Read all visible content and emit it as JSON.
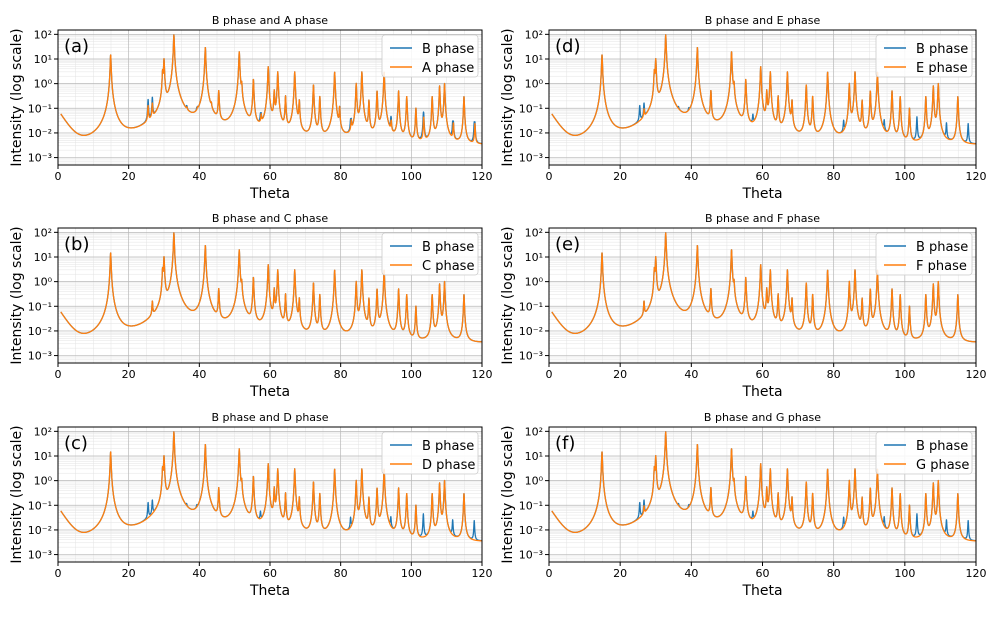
{
  "colors": {
    "b_phase": "#1f77b4",
    "other_phase": "#ff7f0e"
  },
  "chart_data": [
    {
      "type": "line",
      "panel_label": "(a)",
      "title": "B phase and A phase",
      "xlabel": "Theta",
      "ylabel": "Intensity (log scale)",
      "xlim": [
        0,
        120
      ],
      "ylim": [
        0.0005,
        150
      ],
      "yscale": "log",
      "xticks": [
        "0",
        "20",
        "40",
        "60",
        "80",
        "100",
        "120"
      ],
      "yticks": [
        "10⁻³",
        "10⁻²",
        "10⁻¹",
        "10⁰",
        "10¹",
        "10²"
      ],
      "grid": true,
      "legend_position": "upper-right",
      "peaks": [
        [
          14.9,
          15
        ],
        [
          25.5,
          0.1
        ],
        [
          26.7,
          0.12
        ],
        [
          29.6,
          3
        ],
        [
          30.0,
          10
        ],
        [
          32.8,
          95
        ],
        [
          36.5,
          0.02
        ],
        [
          39.5,
          0.02
        ],
        [
          41.7,
          30
        ],
        [
          43.4,
          0.05
        ],
        [
          45.5,
          0.5
        ],
        [
          51.3,
          20
        ],
        [
          52.0,
          0.8
        ],
        [
          55.3,
          1.5
        ],
        [
          57.5,
          0.03
        ],
        [
          59.5,
          5
        ],
        [
          61.2,
          0.5
        ],
        [
          62.2,
          3
        ],
        [
          64.4,
          0.3
        ],
        [
          67.0,
          3
        ],
        [
          68.3,
          0.2
        ],
        [
          72.3,
          0.9
        ],
        [
          74.1,
          0.3
        ],
        [
          78.3,
          3
        ],
        [
          79.7,
          0.1
        ],
        [
          83.0,
          0.02
        ],
        [
          84.4,
          1
        ],
        [
          86.0,
          3
        ],
        [
          88.0,
          0.2
        ],
        [
          90.3,
          0.5
        ],
        [
          92.3,
          3
        ],
        [
          94.3,
          0.02
        ],
        [
          96.4,
          0.5
        ],
        [
          98.7,
          0.3
        ],
        [
          101.3,
          0.1
        ],
        [
          103.5,
          0.04
        ],
        [
          105.9,
          0.3
        ],
        [
          108.0,
          0.8
        ],
        [
          109.4,
          1
        ],
        [
          111.9,
          0.02
        ],
        [
          114.9,
          0.3
        ],
        [
          118.0,
          0.02
        ]
      ],
      "series": [
        {
          "name": "B phase",
          "extra_peaks": [
            [
              25.5,
              0.1
            ],
            [
              26.7,
              0.12
            ],
            [
              36.4,
              0.02
            ],
            [
              39.3,
              0.02
            ],
            [
              57.3,
              0.03
            ],
            [
              74.3,
              0.006
            ],
            [
              82.8,
              0.02
            ],
            [
              94.2,
              0.02
            ],
            [
              103.4,
              0.04
            ],
            [
              111.7,
              0.02
            ],
            [
              117.8,
              0.02
            ]
          ]
        },
        {
          "name": "A phase",
          "extra_peaks": []
        }
      ]
    },
    {
      "type": "line",
      "panel_label": "(b)",
      "title": "B phase and C phase",
      "xlabel": "Theta",
      "ylabel": "Intensity (log scale)",
      "xlim": [
        0,
        120
      ],
      "ylim": [
        0.0005,
        150
      ],
      "yscale": "log",
      "xticks": [
        "0",
        "20",
        "40",
        "60",
        "80",
        "100",
        "120"
      ],
      "yticks": [
        "10⁻³",
        "10⁻²",
        "10⁻¹",
        "10⁰",
        "10¹",
        "10²"
      ],
      "grid": true,
      "legend_position": "upper-right",
      "peaks": [
        [
          14.9,
          15
        ],
        [
          26.7,
          0.12
        ],
        [
          29.6,
          3
        ],
        [
          30.0,
          10
        ],
        [
          32.8,
          95
        ],
        [
          41.7,
          30
        ],
        [
          45.5,
          0.5
        ],
        [
          51.3,
          20
        ],
        [
          52.0,
          0.8
        ],
        [
          55.3,
          1.5
        ],
        [
          59.5,
          5
        ],
        [
          61.2,
          0.5
        ],
        [
          62.2,
          3
        ],
        [
          64.4,
          0.3
        ],
        [
          67.0,
          3
        ],
        [
          68.3,
          0.2
        ],
        [
          72.3,
          0.9
        ],
        [
          74.1,
          0.3
        ],
        [
          78.3,
          3
        ],
        [
          84.4,
          1
        ],
        [
          86.0,
          3
        ],
        [
          88.0,
          0.2
        ],
        [
          90.3,
          0.5
        ],
        [
          92.3,
          3
        ],
        [
          96.4,
          0.5
        ],
        [
          98.7,
          0.3
        ],
        [
          101.3,
          0.1
        ],
        [
          105.9,
          0.3
        ],
        [
          108.0,
          0.8
        ],
        [
          109.4,
          1
        ],
        [
          114.9,
          0.3
        ]
      ],
      "series": [
        {
          "name": "B phase",
          "extra_peaks": []
        },
        {
          "name": "C phase",
          "extra_peaks": []
        }
      ]
    },
    {
      "type": "line",
      "panel_label": "(c)",
      "title": "B phase and D phase",
      "xlabel": "Theta",
      "ylabel": "Intensity (log scale)",
      "xlim": [
        0,
        120
      ],
      "ylim": [
        0.0005,
        150
      ],
      "yscale": "log",
      "xticks": [
        "0",
        "20",
        "40",
        "60",
        "80",
        "100",
        "120"
      ],
      "yticks": [
        "10⁻³",
        "10⁻²",
        "10⁻¹",
        "10⁰",
        "10¹",
        "10²"
      ],
      "grid": true,
      "legend_position": "upper-right",
      "peaks": [
        [
          14.9,
          15
        ],
        [
          29.6,
          3
        ],
        [
          30.0,
          10
        ],
        [
          32.8,
          95
        ],
        [
          41.7,
          30
        ],
        [
          45.5,
          0.5
        ],
        [
          51.3,
          20
        ],
        [
          52.0,
          0.8
        ],
        [
          55.3,
          1.5
        ],
        [
          59.5,
          5
        ],
        [
          61.2,
          0.5
        ],
        [
          62.2,
          3
        ],
        [
          64.4,
          0.3
        ],
        [
          67.0,
          3
        ],
        [
          68.3,
          0.2
        ],
        [
          72.3,
          0.9
        ],
        [
          74.1,
          0.3
        ],
        [
          78.3,
          3
        ],
        [
          84.4,
          1
        ],
        [
          86.0,
          3
        ],
        [
          88.0,
          0.2
        ],
        [
          90.3,
          0.5
        ],
        [
          92.3,
          3
        ],
        [
          96.4,
          0.5
        ],
        [
          98.7,
          0.3
        ],
        [
          101.3,
          0.1
        ],
        [
          105.9,
          0.3
        ],
        [
          108.0,
          0.8
        ],
        [
          109.4,
          1
        ],
        [
          114.9,
          0.3
        ]
      ],
      "series": [
        {
          "name": "B phase",
          "extra_peaks": [
            [
              25.5,
              0.1
            ],
            [
              26.7,
              0.12
            ],
            [
              36.4,
              0.02
            ],
            [
              39.3,
              0.02
            ],
            [
              57.3,
              0.03
            ],
            [
              74.3,
              0.006
            ],
            [
              82.8,
              0.02
            ],
            [
              94.2,
              0.02
            ],
            [
              103.4,
              0.04
            ],
            [
              111.7,
              0.02
            ],
            [
              117.8,
              0.02
            ]
          ]
        },
        {
          "name": "D phase",
          "extra_peaks": []
        }
      ]
    },
    {
      "type": "line",
      "panel_label": "(d)",
      "title": "B phase and E phase",
      "xlabel": "Theta",
      "ylabel": "Intensity (log scale)",
      "xlim": [
        0,
        120
      ],
      "ylim": [
        0.0005,
        150
      ],
      "yscale": "log",
      "xticks": [
        "0",
        "20",
        "40",
        "60",
        "80",
        "100",
        "120"
      ],
      "yticks": [
        "10⁻³",
        "10⁻²",
        "10⁻¹",
        "10⁰",
        "10¹",
        "10²"
      ],
      "grid": true,
      "legend_position": "upper-right",
      "peaks": [
        [
          14.9,
          15
        ],
        [
          29.6,
          3
        ],
        [
          30.0,
          10
        ],
        [
          32.8,
          95
        ],
        [
          41.7,
          30
        ],
        [
          45.5,
          0.5
        ],
        [
          51.3,
          20
        ],
        [
          52.0,
          0.8
        ],
        [
          55.3,
          1.5
        ],
        [
          59.5,
          5
        ],
        [
          61.2,
          0.5
        ],
        [
          62.2,
          3
        ],
        [
          64.4,
          0.3
        ],
        [
          67.0,
          3
        ],
        [
          68.3,
          0.2
        ],
        [
          72.3,
          0.9
        ],
        [
          74.1,
          0.3
        ],
        [
          78.3,
          3
        ],
        [
          84.4,
          1
        ],
        [
          86.0,
          3
        ],
        [
          88.0,
          0.2
        ],
        [
          90.3,
          0.5
        ],
        [
          92.3,
          3
        ],
        [
          96.4,
          0.5
        ],
        [
          98.7,
          0.3
        ],
        [
          101.3,
          0.1
        ],
        [
          105.9,
          0.3
        ],
        [
          108.0,
          0.8
        ],
        [
          109.4,
          1
        ],
        [
          114.9,
          0.3
        ]
      ],
      "series": [
        {
          "name": "B phase",
          "extra_peaks": [
            [
              25.5,
              0.1
            ],
            [
              26.7,
              0.12
            ],
            [
              36.4,
              0.02
            ],
            [
              39.3,
              0.02
            ],
            [
              57.3,
              0.03
            ],
            [
              74.3,
              0.006
            ],
            [
              82.8,
              0.02
            ],
            [
              94.2,
              0.02
            ],
            [
              103.4,
              0.04
            ],
            [
              111.7,
              0.02
            ],
            [
              117.8,
              0.02
            ]
          ]
        },
        {
          "name": "E phase",
          "extra_peaks": [
            [
              26.7,
              0.05
            ],
            [
              74.0,
              0.005
            ]
          ]
        }
      ]
    },
    {
      "type": "line",
      "panel_label": "(e)",
      "title": "B phase and F phase",
      "xlabel": "Theta",
      "ylabel": "Intensity (log scale)",
      "xlim": [
        0,
        120
      ],
      "ylim": [
        0.0005,
        150
      ],
      "yscale": "log",
      "xticks": [
        "0",
        "20",
        "40",
        "60",
        "80",
        "100",
        "120"
      ],
      "yticks": [
        "10⁻³",
        "10⁻²",
        "10⁻¹",
        "10⁰",
        "10¹",
        "10²"
      ],
      "grid": true,
      "legend_position": "upper-right",
      "peaks": [
        [
          14.9,
          15
        ],
        [
          26.7,
          0.12
        ],
        [
          29.6,
          3
        ],
        [
          30.0,
          10
        ],
        [
          32.8,
          95
        ],
        [
          41.7,
          30
        ],
        [
          45.5,
          0.5
        ],
        [
          51.3,
          20
        ],
        [
          52.0,
          0.8
        ],
        [
          55.3,
          1.5
        ],
        [
          59.5,
          5
        ],
        [
          61.2,
          0.5
        ],
        [
          62.2,
          3
        ],
        [
          64.4,
          0.3
        ],
        [
          67.0,
          3
        ],
        [
          68.3,
          0.2
        ],
        [
          72.3,
          0.9
        ],
        [
          74.1,
          0.3
        ],
        [
          78.3,
          3
        ],
        [
          84.4,
          1
        ],
        [
          86.0,
          3
        ],
        [
          88.0,
          0.2
        ],
        [
          90.3,
          0.5
        ],
        [
          92.3,
          3
        ],
        [
          96.4,
          0.5
        ],
        [
          98.7,
          0.3
        ],
        [
          101.3,
          0.1
        ],
        [
          105.9,
          0.3
        ],
        [
          108.0,
          0.8
        ],
        [
          109.4,
          1
        ],
        [
          114.9,
          0.3
        ]
      ],
      "series": [
        {
          "name": "B phase",
          "extra_peaks": []
        },
        {
          "name": "F phase",
          "extra_peaks": []
        }
      ]
    },
    {
      "type": "line",
      "panel_label": "(f)",
      "title": "B phase and G phase",
      "xlabel": "Theta",
      "ylabel": "Intensity (log scale)",
      "xlim": [
        0,
        120
      ],
      "ylim": [
        0.0005,
        150
      ],
      "yscale": "log",
      "xticks": [
        "0",
        "20",
        "40",
        "60",
        "80",
        "100",
        "120"
      ],
      "yticks": [
        "10⁻³",
        "10⁻²",
        "10⁻¹",
        "10⁰",
        "10¹",
        "10²"
      ],
      "grid": true,
      "legend_position": "upper-right",
      "peaks": [
        [
          14.9,
          15
        ],
        [
          29.6,
          3
        ],
        [
          30.0,
          10
        ],
        [
          32.8,
          95
        ],
        [
          41.7,
          30
        ],
        [
          45.5,
          0.5
        ],
        [
          51.3,
          20
        ],
        [
          52.0,
          0.8
        ],
        [
          55.3,
          1.5
        ],
        [
          59.5,
          5
        ],
        [
          61.2,
          0.5
        ],
        [
          62.2,
          3
        ],
        [
          64.4,
          0.3
        ],
        [
          67.0,
          3
        ],
        [
          68.3,
          0.2
        ],
        [
          72.3,
          0.9
        ],
        [
          74.1,
          0.3
        ],
        [
          78.3,
          3
        ],
        [
          84.4,
          1
        ],
        [
          86.0,
          3
        ],
        [
          88.0,
          0.2
        ],
        [
          90.3,
          0.5
        ],
        [
          92.3,
          3
        ],
        [
          96.4,
          0.5
        ],
        [
          98.7,
          0.3
        ],
        [
          101.3,
          0.1
        ],
        [
          105.9,
          0.3
        ],
        [
          108.0,
          0.8
        ],
        [
          109.4,
          1
        ],
        [
          114.9,
          0.3
        ]
      ],
      "series": [
        {
          "name": "B phase",
          "extra_peaks": [
            [
              25.5,
              0.1
            ],
            [
              26.7,
              0.12
            ],
            [
              36.4,
              0.02
            ],
            [
              39.3,
              0.02
            ],
            [
              57.3,
              0.03
            ],
            [
              74.3,
              0.006
            ],
            [
              82.8,
              0.02
            ],
            [
              94.2,
              0.02
            ],
            [
              103.4,
              0.04
            ],
            [
              111.7,
              0.02
            ],
            [
              117.8,
              0.02
            ]
          ]
        },
        {
          "name": "G phase",
          "extra_peaks": [
            [
              26.7,
              0.05
            ],
            [
              74.0,
              0.005
            ]
          ]
        }
      ]
    }
  ]
}
